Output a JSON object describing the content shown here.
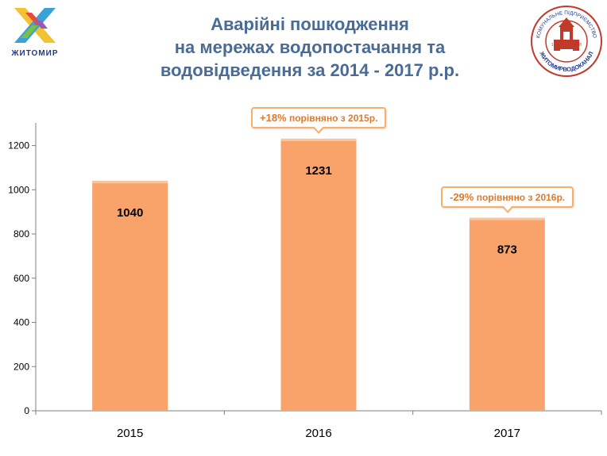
{
  "city_logo": {
    "name": "ЖИТОМИР"
  },
  "company_logo": {
    "arc_text_top": "КОМУНАЛЬНЕ ПІДПРИЄМСТВО",
    "arc_text_bottom": "ЖИТОМИРВОДОКАНАЛ",
    "year_left": "1 8",
    "year_right": "9 8"
  },
  "title": {
    "line1": "Аварійні пошкодження",
    "line2": "на мережах водопостачання та",
    "line3": "водовідведення за 2014 - 2017 р.р."
  },
  "colors": {
    "bar": "#f9a36a",
    "bar_edge": "#f4c79d",
    "title": "#4a6b96",
    "callout_border": "#f6b06a",
    "callout_text": "#e07a2b"
  },
  "chart_data": {
    "type": "bar",
    "categories": [
      "2015",
      "2016",
      "2017"
    ],
    "values": [
      1040,
      1231,
      873
    ],
    "data_labels": [
      "1040",
      "1231",
      "873"
    ],
    "ylim": [
      0,
      1300
    ],
    "yticks": [
      0,
      200,
      400,
      600,
      800,
      1000,
      1200
    ],
    "grid": false,
    "annotations": [
      {
        "category": "2016",
        "pct": "+18%",
        "text": " порівняно з 2015р."
      },
      {
        "category": "2017",
        "pct": "-29%",
        "text": " порівняно з 2016р."
      }
    ]
  }
}
